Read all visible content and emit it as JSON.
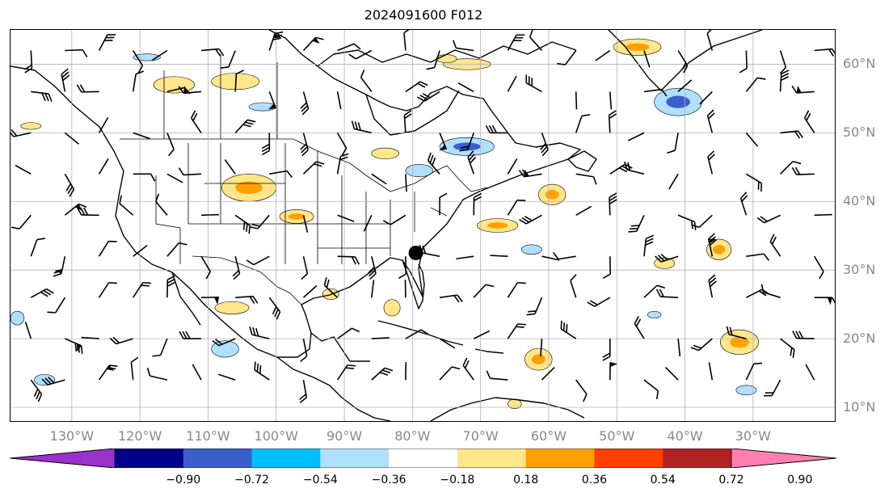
{
  "title": "2024091600 F012",
  "map": {
    "projection": "plate-carree",
    "lon_range": [
      -139,
      -18
    ],
    "lat_range": [
      8,
      65
    ],
    "grid": true,
    "lat_labels": [
      "60°N",
      "50°N",
      "40°N",
      "30°N",
      "20°N",
      "10°N"
    ],
    "lat_values": [
      60,
      50,
      40,
      30,
      20,
      10
    ],
    "lon_labels": [
      "130°W",
      "120°W",
      "110°W",
      "100°W",
      "90°W",
      "80°W",
      "70°W",
      "60°W",
      "50°W",
      "40°W",
      "30°W"
    ],
    "lon_values": [
      -130,
      -120,
      -110,
      -100,
      -90,
      -80,
      -70,
      -60,
      -50,
      -40,
      -30
    ],
    "marker": {
      "lon": -79.5,
      "lat": 32.5,
      "color": "#000000"
    },
    "icons": [
      "wind-barbs",
      "coastlines",
      "state-borders"
    ]
  },
  "colorbar": {
    "colors": [
      "#9932cc",
      "#00008b",
      "#3a5fcd",
      "#00bfff",
      "#b0e0ff",
      "#ffffff",
      "#ffe68a",
      "#ffa000",
      "#ff4000",
      "#b22222",
      "#ff80b0"
    ],
    "ticks": [
      "−0.90",
      "−0.72",
      "−0.54",
      "−0.36",
      "−0.18",
      "0.18",
      "0.36",
      "0.54",
      "0.72",
      "0.90"
    ],
    "extend": "both"
  },
  "contours": [
    {
      "lon": -115,
      "lat": 57,
      "rx": 3.0,
      "ry": 1.2,
      "level": 0.36
    },
    {
      "lon": -106,
      "lat": 57.5,
      "rx": 3.5,
      "ry": 1.2,
      "level": 0.36
    },
    {
      "lon": -84,
      "lat": 47,
      "rx": 2.0,
      "ry": 0.8,
      "level": 0.36
    },
    {
      "lon": -104,
      "lat": 42,
      "rx": 4.0,
      "ry": 2.0,
      "level": 0.54
    },
    {
      "lon": -97,
      "lat": 37.8,
      "rx": 2.5,
      "ry": 1.0,
      "level": 0.54
    },
    {
      "lon": -72,
      "lat": 60,
      "rx": 3.5,
      "ry": 0.8,
      "level": 0.36
    },
    {
      "lon": -47,
      "lat": 62.5,
      "rx": 3.5,
      "ry": 1.2,
      "level": 0.54
    },
    {
      "lon": -59.5,
      "lat": 41,
      "rx": 2.0,
      "ry": 1.5,
      "level": 0.54
    },
    {
      "lon": -67.5,
      "lat": 36.5,
      "rx": 3.0,
      "ry": 1.0,
      "level": 0.54
    },
    {
      "lon": -35,
      "lat": 33,
      "rx": 1.8,
      "ry": 1.5,
      "level": 0.54
    },
    {
      "lon": -43,
      "lat": 31,
      "rx": 1.5,
      "ry": 0.8,
      "level": 0.36
    },
    {
      "lon": -106.5,
      "lat": 24.5,
      "rx": 2.5,
      "ry": 0.9,
      "level": 0.36
    },
    {
      "lon": -83,
      "lat": 24.5,
      "rx": 1.2,
      "ry": 1.2,
      "level": 0.36
    },
    {
      "lon": -61.5,
      "lat": 17,
      "rx": 2.0,
      "ry": 1.6,
      "level": 0.54
    },
    {
      "lon": -32,
      "lat": 19.5,
      "rx": 2.8,
      "ry": 1.8,
      "level": 0.54
    },
    {
      "lon": -65,
      "lat": 10.5,
      "rx": 1.0,
      "ry": 0.7,
      "level": 0.36
    },
    {
      "lon": -92,
      "lat": 26.5,
      "rx": 1.2,
      "ry": 0.8,
      "level": 0.36
    },
    {
      "lon": -75,
      "lat": 60.8,
      "rx": 1.5,
      "ry": 0.6,
      "level": 0.36
    },
    {
      "lon": -136,
      "lat": 51,
      "rx": 1.5,
      "ry": 0.5,
      "level": 0.36
    },
    {
      "lon": -72,
      "lat": 48,
      "rx": 4.0,
      "ry": 1.3,
      "level": -0.54
    },
    {
      "lon": -41,
      "lat": 54.5,
      "rx": 3.5,
      "ry": 2.0,
      "level": -0.54
    },
    {
      "lon": -79,
      "lat": 44.5,
      "rx": 2.0,
      "ry": 0.9,
      "level": -0.36
    },
    {
      "lon": -119,
      "lat": 61,
      "rx": 2.0,
      "ry": 0.5,
      "level": -0.36
    },
    {
      "lon": -102,
      "lat": 53.8,
      "rx": 2.0,
      "ry": 0.6,
      "level": -0.36
    },
    {
      "lon": -62.5,
      "lat": 33,
      "rx": 1.5,
      "ry": 0.7,
      "level": -0.36
    },
    {
      "lon": -107.5,
      "lat": 18.5,
      "rx": 2.0,
      "ry": 1.2,
      "level": -0.36
    },
    {
      "lon": -134,
      "lat": 14,
      "rx": 1.5,
      "ry": 0.8,
      "level": -0.36
    },
    {
      "lon": -138,
      "lat": 23,
      "rx": 1.0,
      "ry": 1.0,
      "level": -0.36
    },
    {
      "lon": -31,
      "lat": 12.5,
      "rx": 1.5,
      "ry": 0.7,
      "level": -0.36
    },
    {
      "lon": -44.5,
      "lat": 23.5,
      "rx": 1.0,
      "ry": 0.5,
      "level": -0.36
    }
  ]
}
